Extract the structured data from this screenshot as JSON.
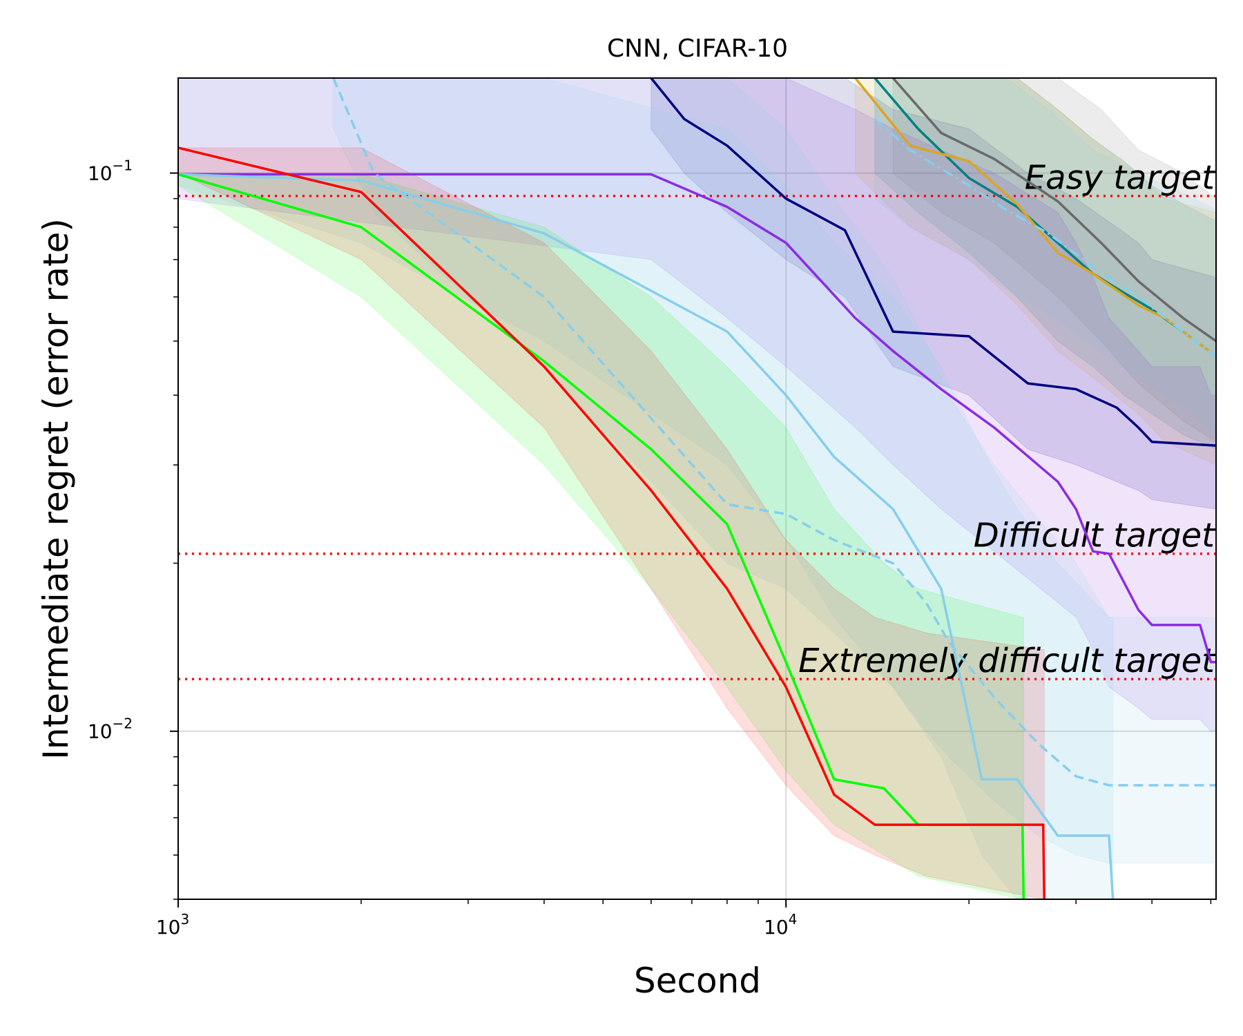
{
  "chart_data": {
    "type": "line",
    "title": "CNN, CIFAR-10",
    "xlabel": "Second",
    "ylabel": "Intermediate regret (error rate)",
    "xscale": "log",
    "yscale": "log",
    "xlim": [
      1000,
      51000
    ],
    "ylim": [
      0.005,
      0.148
    ],
    "grid": true,
    "x_ticks": [
      {
        "value": 1000,
        "base": "10",
        "exp": "3"
      },
      {
        "value": 10000,
        "base": "10",
        "exp": "4"
      }
    ],
    "y_ticks": [
      {
        "value": 0.01,
        "base": "10",
        "exp": "−2"
      },
      {
        "value": 0.1,
        "base": "10",
        "exp": "−1"
      }
    ],
    "targets": [
      {
        "label": "Easy target",
        "value": 0.091,
        "color": "#ff0000"
      },
      {
        "label": "Difficult target",
        "value": 0.0208,
        "color": "#ff0000"
      },
      {
        "label": "Extremely difficult target",
        "value": 0.0124,
        "color": "#ff0000"
      }
    ],
    "series": [
      {
        "name": "navy",
        "color": "#000080",
        "dash": "solid",
        "x": [
          6000,
          6800,
          8000,
          10000,
          12500,
          15000,
          20000,
          25000,
          30000,
          35000,
          38000,
          40000,
          51000
        ],
        "y": [
          0.148,
          0.125,
          0.112,
          0.09,
          0.079,
          0.052,
          0.051,
          0.042,
          0.041,
          0.038,
          0.035,
          0.033,
          0.0325
        ],
        "band_lo": [
          0.12,
          0.1,
          0.085,
          0.07,
          0.06,
          0.045,
          0.04,
          0.032,
          0.03,
          0.028,
          0.027,
          0.026,
          0.025
        ],
        "band_hi": [
          0.148,
          0.148,
          0.148,
          0.148,
          0.148,
          0.13,
          0.12,
          0.1,
          0.09,
          0.08,
          0.075,
          0.07,
          0.065
        ]
      },
      {
        "name": "gray",
        "color": "#696969",
        "dash": "solid",
        "x": [
          15000,
          18000,
          22000,
          28000,
          33000,
          38000,
          45000,
          51000
        ],
        "y": [
          0.148,
          0.118,
          0.106,
          0.089,
          0.075,
          0.064,
          0.055,
          0.05
        ],
        "band_lo": [
          0.1,
          0.085,
          0.075,
          0.06,
          0.05,
          0.042,
          0.036,
          0.033
        ],
        "band_hi": [
          0.148,
          0.148,
          0.148,
          0.148,
          0.13,
          0.11,
          0.1,
          0.09
        ]
      },
      {
        "name": "teal",
        "color": "#008080",
        "dash": "solid",
        "x": [
          14000,
          16500,
          20000,
          24000,
          28000,
          32000,
          36000,
          40000,
          45000,
          51000
        ],
        "y": [
          0.148,
          0.12,
          0.098,
          0.087,
          0.075,
          0.066,
          0.061,
          0.057,
          0.052,
          0.047
        ],
        "band_lo": [
          0.1,
          0.085,
          0.072,
          0.06,
          0.05,
          0.045,
          0.04,
          0.037,
          0.034,
          0.032
        ],
        "band_hi": [
          0.148,
          0.148,
          0.148,
          0.148,
          0.13,
          0.115,
          0.105,
          0.095,
          0.088,
          0.082
        ]
      },
      {
        "name": "goldenrod",
        "color": "#daa520",
        "dash": "solid",
        "x": [
          13000,
          16000,
          20000,
          24000,
          28000,
          32000,
          38000,
          42000,
          51000
        ],
        "y": [
          0.148,
          0.112,
          0.105,
          0.088,
          0.072,
          0.066,
          0.058,
          0.055,
          0.047
        ],
        "band_lo": [
          0.1,
          0.08,
          0.07,
          0.058,
          0.048,
          0.043,
          0.037,
          0.033,
          0.03
        ],
        "band_hi": [
          0.148,
          0.148,
          0.148,
          0.148,
          0.13,
          0.115,
          0.1,
          0.09,
          0.085
        ]
      },
      {
        "name": "skyblue-dashdot",
        "color": "#87ceeb",
        "dash": "dashdot",
        "x": [
          14000,
          16000,
          20000,
          23000,
          27000,
          32000,
          38000,
          45000,
          51000
        ],
        "y": [
          0.125,
          0.11,
          0.095,
          0.086,
          0.078,
          0.068,
          0.06,
          0.052,
          0.047
        ],
        "band_lo": [
          0.09,
          0.08,
          0.07,
          0.062,
          0.056,
          0.049,
          0.043,
          0.038,
          0.034
        ],
        "band_hi": [
          0.148,
          0.148,
          0.148,
          0.148,
          0.13,
          0.11,
          0.1,
          0.092,
          0.086
        ]
      },
      {
        "name": "blueviolet",
        "color": "#8a2be2",
        "dash": "solid",
        "x": [
          1000,
          6000,
          8000,
          10000,
          13000,
          15000,
          18000,
          22000,
          28000,
          30000,
          32000,
          34000,
          38000,
          40000,
          42000,
          45000,
          48000,
          50000,
          51000
        ],
        "y": [
          0.0995,
          0.0995,
          0.087,
          0.075,
          0.055,
          0.048,
          0.041,
          0.035,
          0.028,
          0.025,
          0.021,
          0.0208,
          0.0165,
          0.0155,
          0.0155,
          0.0155,
          0.0155,
          0.0133,
          0.0133
        ],
        "band_lo": [
          0.09,
          0.07,
          0.055,
          0.045,
          0.035,
          0.03,
          0.025,
          0.021,
          0.017,
          0.016,
          0.014,
          0.012,
          0.011,
          0.0105,
          0.0105,
          0.0105,
          0.0105,
          0.01,
          0.01
        ],
        "band_hi": [
          0.148,
          0.148,
          0.148,
          0.148,
          0.13,
          0.12,
          0.11,
          0.1,
          0.085,
          0.075,
          0.065,
          0.055,
          0.048,
          0.045,
          0.045,
          0.045,
          0.045,
          0.04,
          0.04
        ]
      },
      {
        "name": "skyblue",
        "color": "#87ceeb",
        "dash": "solid",
        "x": [
          1000,
          2000,
          4000,
          8000,
          10000,
          12000,
          15000,
          18000,
          21000,
          24000,
          28000,
          34000,
          34500
        ],
        "y": [
          0.0995,
          0.097,
          0.078,
          0.052,
          0.04,
          0.031,
          0.025,
          0.018,
          0.0082,
          0.0082,
          0.0065,
          0.0065,
          0.005
        ],
        "band_lo": [
          0.095,
          0.075,
          0.05,
          0.03,
          0.022,
          0.016,
          0.012,
          0.009,
          0.006,
          0.005,
          0.005,
          0.005,
          0.005
        ],
        "band_hi": [
          0.148,
          0.148,
          0.148,
          0.12,
          0.095,
          0.075,
          0.06,
          0.045,
          0.032,
          0.025,
          0.02,
          0.016,
          0.016
        ]
      },
      {
        "name": "skyblue-dashed",
        "color": "#87ceeb",
        "dash": "dashed",
        "x": [
          1800,
          2100,
          4000,
          8000,
          10000,
          12000,
          15000,
          17000,
          18500,
          22000,
          26000,
          30000,
          34000,
          51000
        ],
        "y": [
          0.148,
          0.1,
          0.06,
          0.0255,
          0.0245,
          0.022,
          0.02,
          0.017,
          0.0145,
          0.0115,
          0.0095,
          0.0083,
          0.008,
          0.008
        ],
        "band_lo": [
          0.12,
          0.085,
          0.045,
          0.02,
          0.018,
          0.015,
          0.012,
          0.01,
          0.009,
          0.0075,
          0.0065,
          0.006,
          0.0058,
          0.0058
        ],
        "band_hi": [
          0.148,
          0.148,
          0.148,
          0.148,
          0.12,
          0.09,
          0.065,
          0.05,
          0.04,
          0.03,
          0.024,
          0.02,
          0.016,
          0.016
        ]
      },
      {
        "name": "lime",
        "color": "#00ff00",
        "dash": "solid",
        "x": [
          1000,
          2000,
          4000,
          6000,
          8000,
          10000,
          12000,
          14500,
          16500,
          24500,
          24600
        ],
        "y": [
          0.0995,
          0.08,
          0.046,
          0.032,
          0.0235,
          0.0133,
          0.0082,
          0.0079,
          0.0068,
          0.0068,
          0.005
        ],
        "band_lo": [
          0.095,
          0.06,
          0.03,
          0.018,
          0.012,
          0.0085,
          0.0068,
          0.006,
          0.0055,
          0.005,
          0.005
        ],
        "band_hi": [
          0.0995,
          0.0995,
          0.08,
          0.06,
          0.045,
          0.035,
          0.025,
          0.02,
          0.018,
          0.016,
          0.016
        ]
      },
      {
        "name": "red",
        "color": "#ff0000",
        "dash": "solid",
        "x": [
          1000,
          2000,
          4000,
          6000,
          8000,
          10000,
          12000,
          14000,
          17000,
          26500,
          26600
        ],
        "y": [
          0.111,
          0.0925,
          0.045,
          0.027,
          0.018,
          0.012,
          0.0077,
          0.0068,
          0.0068,
          0.0068,
          0.005
        ],
        "band_lo": [
          0.1,
          0.07,
          0.035,
          0.018,
          0.011,
          0.008,
          0.0065,
          0.006,
          0.0055,
          0.005,
          0.005
        ],
        "band_hi": [
          0.111,
          0.111,
          0.075,
          0.048,
          0.032,
          0.022,
          0.018,
          0.016,
          0.015,
          0.014,
          0.014
        ]
      }
    ]
  }
}
